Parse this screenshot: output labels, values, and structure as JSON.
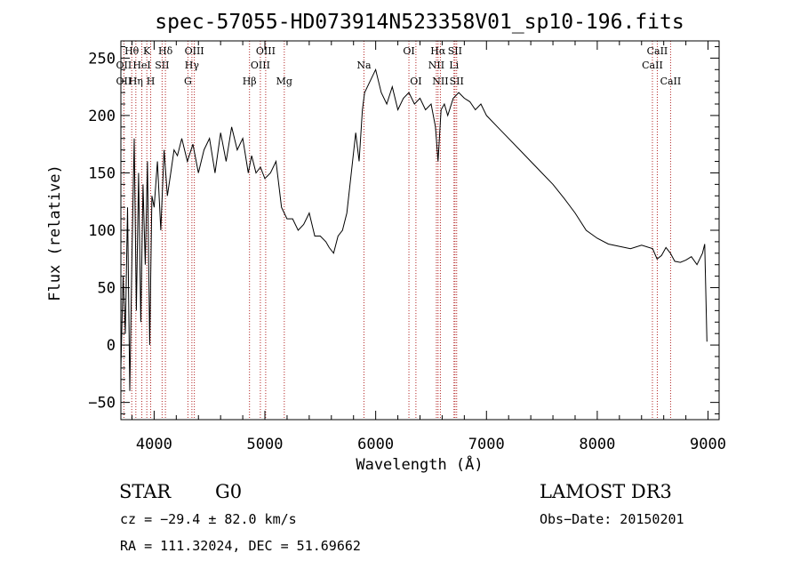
{
  "chart_data": {
    "type": "line",
    "title": "spec-57055-HD073914N523358V01_sp10-196.fits",
    "xlabel": "Wavelength (Å)",
    "ylabel": "Flux (relative)",
    "xlim": [
      3700,
      9100
    ],
    "ylim": [
      -65,
      265
    ],
    "x_ticks": [
      4000,
      5000,
      6000,
      7000,
      8000,
      9000
    ],
    "y_ticks": [
      -50,
      0,
      50,
      100,
      150,
      200,
      250
    ],
    "series": [
      {
        "name": "spectrum",
        "x": [
          3700,
          3720,
          3740,
          3760,
          3780,
          3800,
          3820,
          3840,
          3860,
          3880,
          3900,
          3920,
          3940,
          3960,
          3980,
          4000,
          4030,
          4060,
          4090,
          4120,
          4150,
          4180,
          4210,
          4250,
          4300,
          4350,
          4400,
          4450,
          4500,
          4550,
          4600,
          4650,
          4700,
          4750,
          4800,
          4850,
          4880,
          4920,
          4960,
          5000,
          5050,
          5100,
          5150,
          5200,
          5250,
          5300,
          5350,
          5400,
          5450,
          5500,
          5550,
          5580,
          5620,
          5660,
          5700,
          5740,
          5780,
          5820,
          5850,
          5880,
          5900,
          5950,
          6000,
          6050,
          6100,
          6150,
          6200,
          6250,
          6300,
          6350,
          6400,
          6450,
          6500,
          6540,
          6563,
          6590,
          6620,
          6650,
          6700,
          6750,
          6800,
          6850,
          6900,
          6950,
          7000,
          7100,
          7200,
          7300,
          7400,
          7500,
          7600,
          7700,
          7800,
          7900,
          8000,
          8100,
          8200,
          8300,
          8400,
          8500,
          8540,
          8580,
          8620,
          8660,
          8700,
          8750,
          8800,
          8850,
          8900,
          8950,
          8970,
          8990
        ],
        "y": [
          -20,
          60,
          10,
          120,
          -40,
          80,
          180,
          30,
          150,
          20,
          140,
          70,
          160,
          0,
          130,
          120,
          160,
          100,
          170,
          130,
          150,
          170,
          165,
          180,
          160,
          175,
          150,
          170,
          180,
          150,
          185,
          160,
          190,
          170,
          180,
          150,
          165,
          150,
          155,
          145,
          150,
          160,
          120,
          110,
          110,
          100,
          105,
          115,
          95,
          95,
          90,
          85,
          80,
          95,
          100,
          115,
          150,
          185,
          160,
          205,
          220,
          230,
          240,
          220,
          210,
          225,
          205,
          215,
          220,
          210,
          215,
          205,
          210,
          190,
          160,
          205,
          210,
          200,
          215,
          220,
          215,
          212,
          205,
          210,
          200,
          190,
          180,
          170,
          160,
          150,
          140,
          128,
          115,
          100,
          93,
          88,
          86,
          84,
          87,
          84,
          75,
          78,
          85,
          80,
          73,
          72,
          74,
          77,
          70,
          80,
          88,
          3
        ]
      }
    ],
    "spectral_lines": [
      {
        "label": "Hθ",
        "x": 3798,
        "row": 1
      },
      {
        "label": "OII",
        "x": 3727,
        "row": 2
      },
      {
        "label": "OII",
        "x": 3727,
        "row": 3
      },
      {
        "label": "K",
        "x": 3934,
        "row": 1
      },
      {
        "label": "HeI",
        "x": 3889,
        "row": 2
      },
      {
        "label": "Hη",
        "x": 3835,
        "row": 3
      },
      {
        "label": "H",
        "x": 3969,
        "row": 3
      },
      {
        "label": "SII",
        "x": 4072,
        "row": 2
      },
      {
        "label": "Hδ",
        "x": 4102,
        "row": 1
      },
      {
        "label": "OIII",
        "x": 4363,
        "row": 1
      },
      {
        "label": "Hγ",
        "x": 4341,
        "row": 2
      },
      {
        "label": "G",
        "x": 4305,
        "row": 3
      },
      {
        "label": "Hβ",
        "x": 4861,
        "row": 3
      },
      {
        "label": "OIII",
        "x": 5007,
        "row": 1
      },
      {
        "label": "OIII",
        "x": 4959,
        "row": 2
      },
      {
        "label": "Mg",
        "x": 5175,
        "row": 3
      },
      {
        "label": "Na",
        "x": 5894,
        "row": 2
      },
      {
        "label": "OI",
        "x": 6300,
        "row": 1
      },
      {
        "label": "OI",
        "x": 6363,
        "row": 3
      },
      {
        "label": "Hα",
        "x": 6563,
        "row": 1
      },
      {
        "label": "SII",
        "x": 6716,
        "row": 1
      },
      {
        "label": "NII",
        "x": 6548,
        "row": 2
      },
      {
        "label": "Li",
        "x": 6707,
        "row": 2
      },
      {
        "label": "NII",
        "x": 6584,
        "row": 3
      },
      {
        "label": "SII",
        "x": 6731,
        "row": 3
      },
      {
        "label": "CaII",
        "x": 8542,
        "row": 1
      },
      {
        "label": "CaII",
        "x": 8498,
        "row": 2
      },
      {
        "label": "CaII",
        "x": 8662,
        "row": 3
      }
    ]
  },
  "info": {
    "object_class": "STAR",
    "subclass": "G0",
    "survey": "LAMOST DR3",
    "redshift": "cz = −29.4 ± 82.0 km/s",
    "obs_date": "Obs−Date: 20150201",
    "coords": "RA = 111.32024, DEC =  51.69662"
  }
}
